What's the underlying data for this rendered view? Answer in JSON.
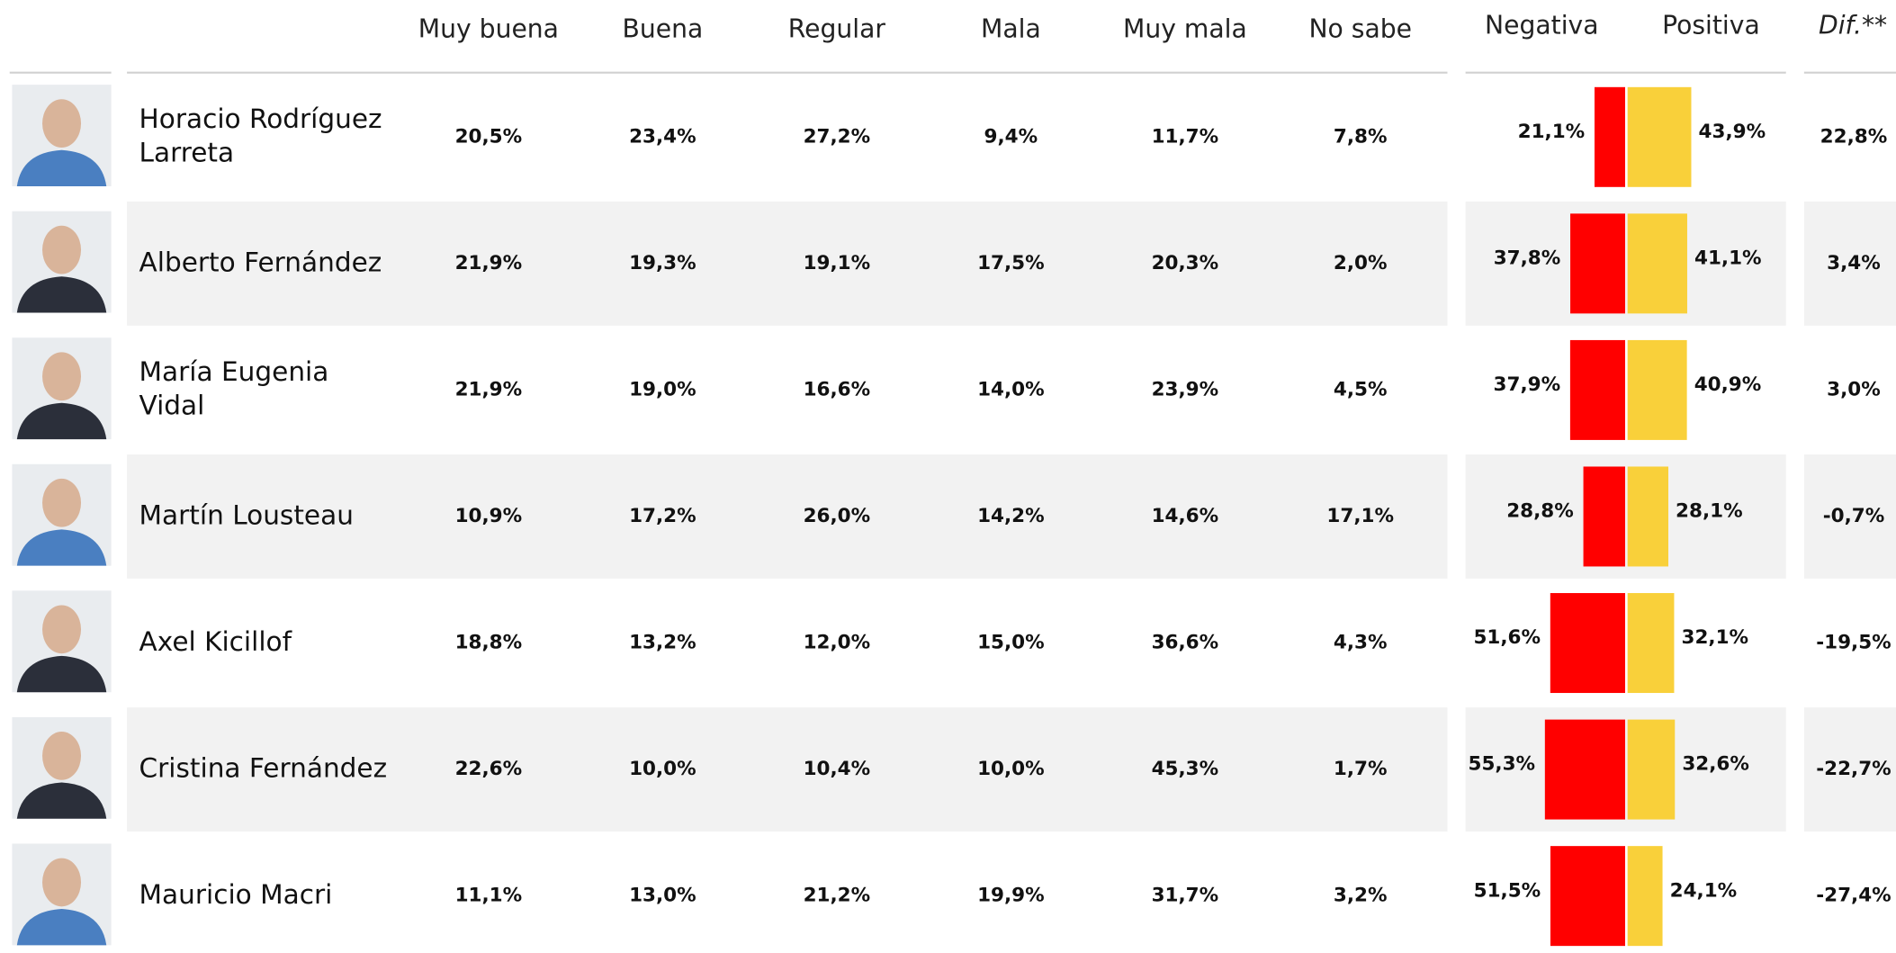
{
  "table": {
    "columns": [
      "Muy buena",
      "Buena",
      "Regular",
      "Mala",
      "Muy mala",
      "No sabe",
      "Negativa",
      "Positiva",
      "Dif.**"
    ],
    "negative_color": "#ff0000",
    "positive_color": "#f9d03a",
    "rows": [
      {
        "name": [
          "Horacio Rodríguez",
          "Larreta"
        ],
        "cells": [
          "20,5%",
          "23,4%",
          "27,2%",
          "9,4%",
          "11,7%",
          "7,8%"
        ],
        "negative": {
          "value": 21.1,
          "label": "21,1%"
        },
        "positive": {
          "value": 43.9,
          "label": "43,9%"
        },
        "dif": "22,8%"
      },
      {
        "name": [
          "Alberto Fernández"
        ],
        "cells": [
          "21,9%",
          "19,3%",
          "19,1%",
          "17,5%",
          "20,3%",
          "2,0%"
        ],
        "negative": {
          "value": 37.8,
          "label": "37,8%"
        },
        "positive": {
          "value": 41.1,
          "label": "41,1%"
        },
        "dif": "3,4%"
      },
      {
        "name": [
          "María Eugenia",
          "Vidal"
        ],
        "cells": [
          "21,9%",
          "19,0%",
          "16,6%",
          "14,0%",
          "23,9%",
          "4,5%"
        ],
        "negative": {
          "value": 37.9,
          "label": "37,9%"
        },
        "positive": {
          "value": 40.9,
          "label": "40,9%"
        },
        "dif": "3,0%"
      },
      {
        "name": [
          "Martín Lousteau"
        ],
        "cells": [
          "10,9%",
          "17,2%",
          "26,0%",
          "14,2%",
          "14,6%",
          "17,1%"
        ],
        "negative": {
          "value": 28.8,
          "label": "28,8%"
        },
        "positive": {
          "value": 28.1,
          "label": "28,1%"
        },
        "dif": "-0,7%"
      },
      {
        "name": [
          "Axel Kicillof"
        ],
        "cells": [
          "18,8%",
          "13,2%",
          "12,0%",
          "15,0%",
          "36,6%",
          "4,3%"
        ],
        "negative": {
          "value": 51.6,
          "label": "51,6%"
        },
        "positive": {
          "value": 32.1,
          "label": "32,1%"
        },
        "dif": "-19,5%"
      },
      {
        "name": [
          "Cristina Fernández"
        ],
        "cells": [
          "22,6%",
          "10,0%",
          "10,4%",
          "10,0%",
          "45,3%",
          "1,7%"
        ],
        "negative": {
          "value": 55.3,
          "label": "55,3%"
        },
        "positive": {
          "value": 32.6,
          "label": "32,6%"
        },
        "dif": "-22,7%"
      },
      {
        "name": [
          "Mauricio Macri"
        ],
        "cells": [
          "11,1%",
          "13,0%",
          "21,2%",
          "19,9%",
          "31,7%",
          "3,2%"
        ],
        "negative": {
          "value": 51.5,
          "label": "51,5%"
        },
        "positive": {
          "value": 24.1,
          "label": "24,1%"
        },
        "dif": "-27,4%"
      }
    ]
  }
}
